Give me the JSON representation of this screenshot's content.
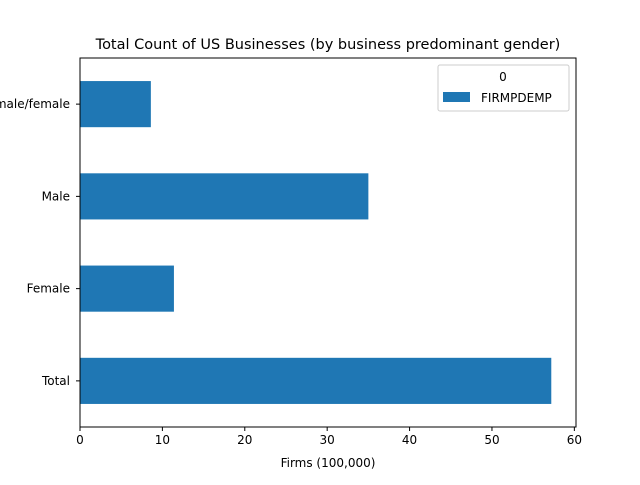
{
  "chart_data": {
    "type": "bar",
    "orientation": "horizontal",
    "title": "Total Count of US Businesses (by business predominant gender)",
    "xlabel": "Firms (100,000)",
    "ylabel": "",
    "categories": [
      "Total",
      "Female",
      "Male",
      "Equally male/female"
    ],
    "series": [
      {
        "name": "FIRMPDEMP",
        "values": [
          57.2,
          11.4,
          35.0,
          8.6
        ],
        "color": "#1f77b4"
      }
    ],
    "xlim": [
      0,
      60.2
    ],
    "xticks": [
      0,
      10,
      20,
      30,
      40,
      50,
      60
    ],
    "xtick_labels": [
      "0",
      "10",
      "20",
      "30",
      "40",
      "50",
      "60"
    ],
    "grid": false,
    "legend": {
      "title": "0",
      "placement": "top-right",
      "entries": [
        "FIRMPDEMP"
      ]
    }
  }
}
